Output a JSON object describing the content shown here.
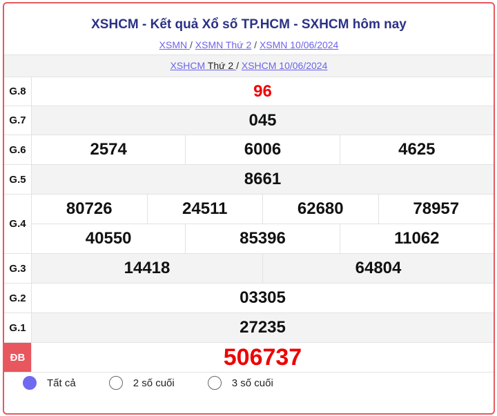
{
  "header": {
    "title": "XSHCM - Kết quả Xổ số TP.HCM - SXHCM hôm nay",
    "links": [
      "XSMN ",
      "XSMN Thứ 2",
      "XSMN 10/06/2024"
    ],
    "sep": "/"
  },
  "sub": {
    "link1": "XSHCM",
    "link1_rest": " Thứ 2 ",
    "link2": "XSHCM 10/06/2024"
  },
  "prizes": [
    {
      "label": "G.8",
      "rows": [
        [
          "96"
        ]
      ]
    },
    {
      "label": "G.7",
      "rows": [
        [
          "045"
        ]
      ]
    },
    {
      "label": "G.6",
      "rows": [
        [
          "2574",
          "6006",
          "4625"
        ]
      ]
    },
    {
      "label": "G.5",
      "rows": [
        [
          "8661"
        ]
      ]
    },
    {
      "label": "G.4",
      "rows": [
        [
          "80726",
          "24511",
          "62680",
          "78957"
        ],
        [
          "40550",
          "85396",
          "11062"
        ]
      ]
    },
    {
      "label": "G.3",
      "rows": [
        [
          "14418",
          "64804"
        ]
      ]
    },
    {
      "label": "G.2",
      "rows": [
        [
          "03305"
        ]
      ]
    },
    {
      "label": "G.1",
      "rows": [
        [
          "27235"
        ]
      ]
    },
    {
      "label": "ĐB",
      "rows": [
        [
          "506737"
        ]
      ]
    }
  ],
  "filter": {
    "options": [
      "Tất cả",
      "2 số cuối",
      "3 số cuối"
    ],
    "selected": 0
  },
  "colors": {
    "accent": "#e8565e",
    "title": "#2b3185",
    "link": "#6b63e8",
    "radio": "#6f6af0",
    "highlight": "#ee0000"
  }
}
